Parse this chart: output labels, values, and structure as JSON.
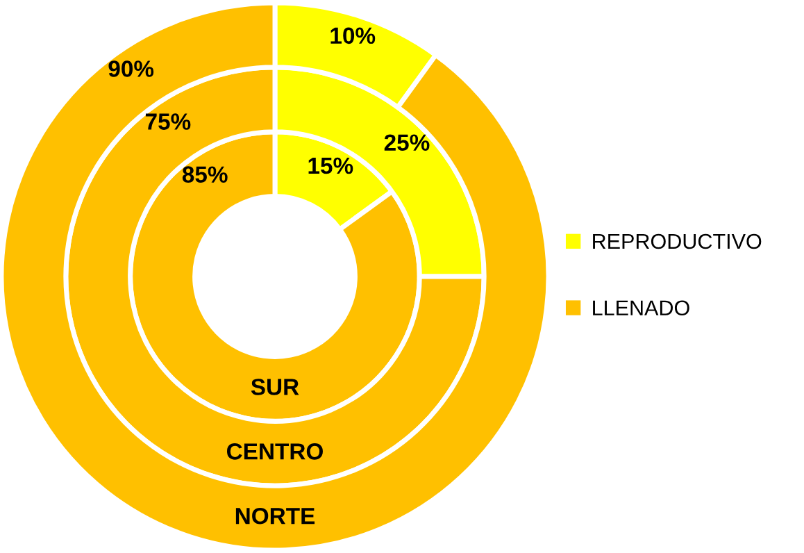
{
  "chart_data": {
    "type": "donut",
    "categories": [
      "REPRODUCTIVO",
      "LLENADO"
    ],
    "colors": [
      "#ffff00",
      "#ffc000"
    ],
    "series": [
      {
        "name": "SUR",
        "values": [
          15,
          85
        ],
        "value_labels": [
          "15%",
          "85%"
        ]
      },
      {
        "name": "CENTRO",
        "values": [
          25,
          75
        ],
        "value_labels": [
          "25%",
          "75%"
        ]
      },
      {
        "name": "NORTE",
        "values": [
          10,
          90
        ],
        "value_labels": [
          "10%",
          "90%"
        ]
      }
    ],
    "legend": "right"
  }
}
